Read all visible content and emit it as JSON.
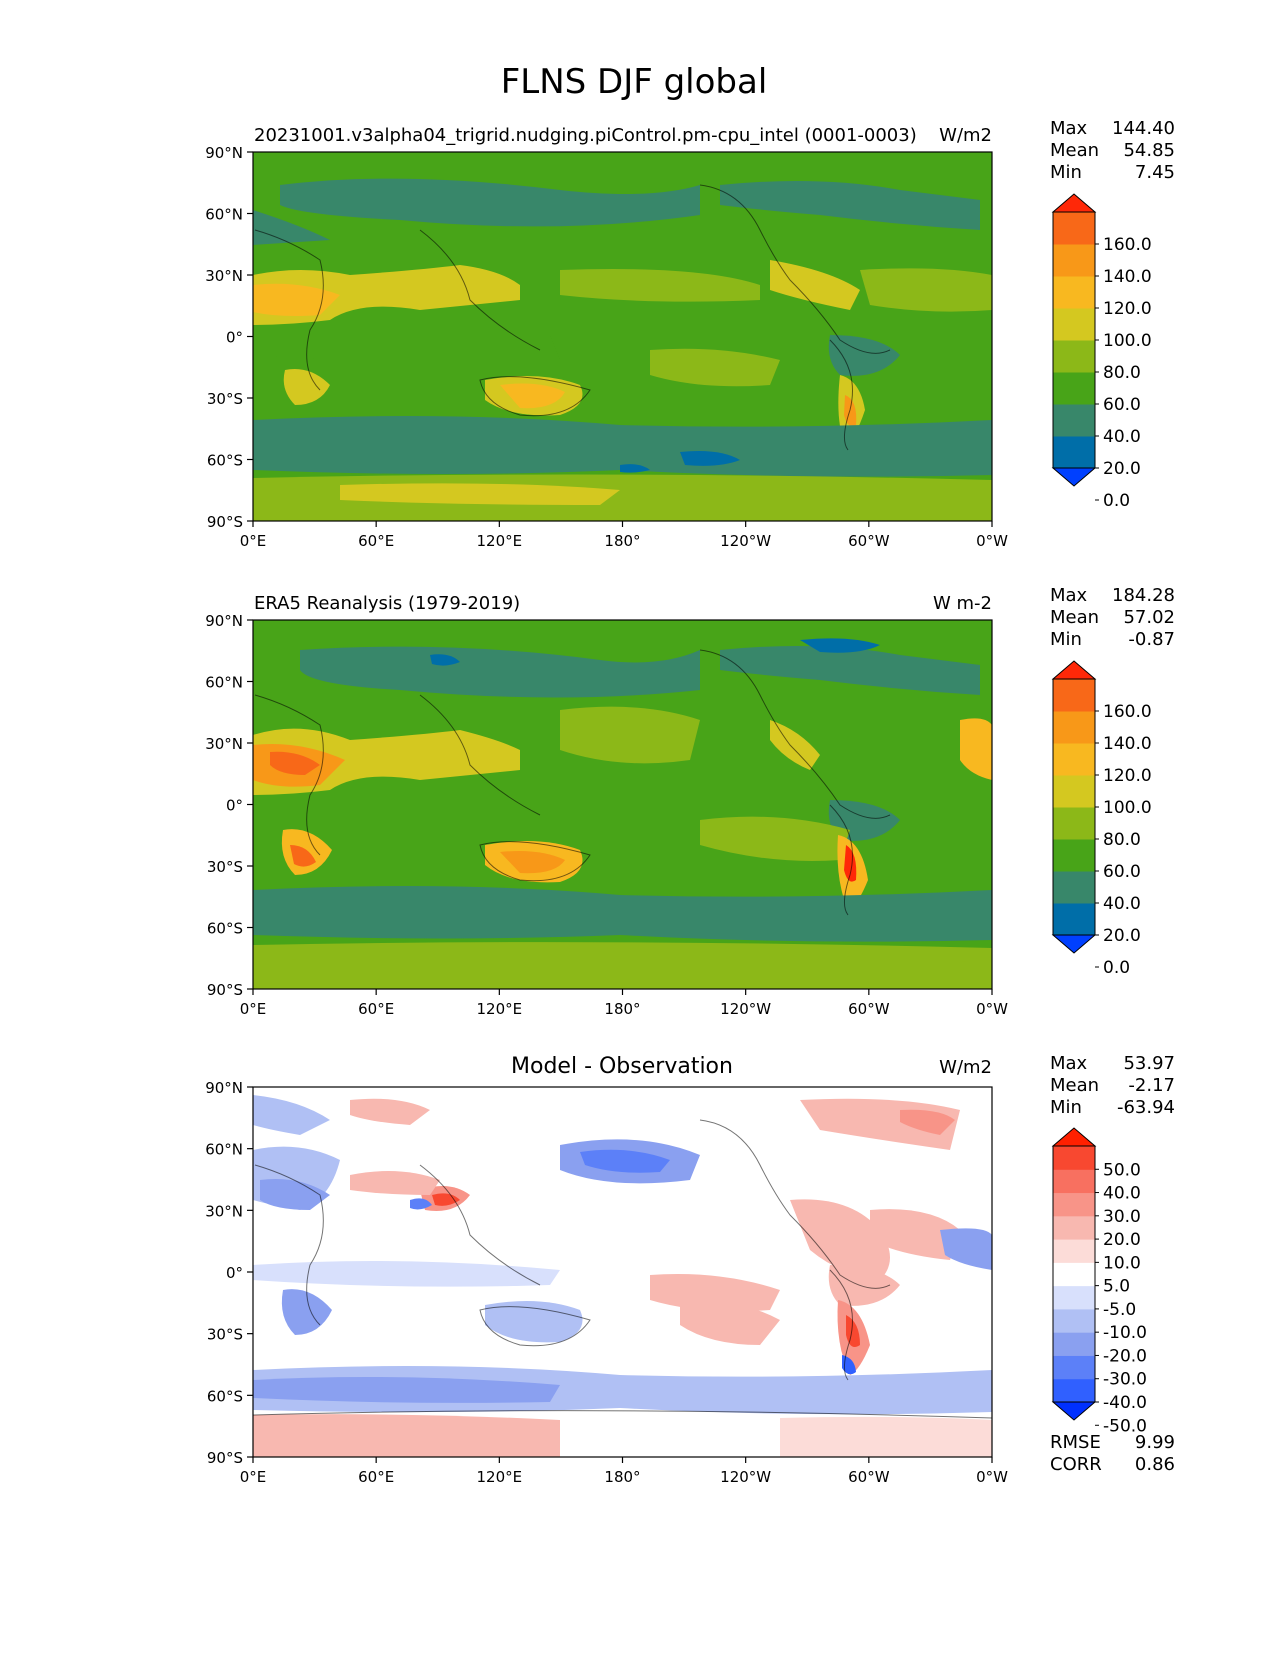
{
  "figure_title": "FLNS DJF global",
  "panels": [
    {
      "title_left": "20231001.v3alpha04_trigrid.nudging.piControl.pm-cpu_intel (0001-0003)",
      "title_center": "",
      "units": "W/m2",
      "stats": [
        {
          "label": "Max",
          "value": "144.40"
        },
        {
          "label": "Mean",
          "value": "54.85"
        },
        {
          "label": "Min",
          "value": "7.45"
        }
      ],
      "colorbar_labels": [
        "160.0",
        "140.0",
        "120.0",
        "100.0",
        "80.0",
        "60.0",
        "40.0",
        "20.0",
        "0.0"
      ],
      "colorbar_colors": [
        "#0040ff",
        "#006ea8",
        "#38876a",
        "#48a418",
        "#8cb818",
        "#d4c820",
        "#f8b820",
        "#f89818",
        "#f86818",
        "#ff2808"
      ]
    },
    {
      "title_left": "ERA5 Reanalysis (1979-2019)",
      "title_center": "",
      "units": "W m-2",
      "stats": [
        {
          "label": "Max",
          "value": "184.28"
        },
        {
          "label": "Mean",
          "value": "57.02"
        },
        {
          "label": "Min",
          "value": "-0.87"
        }
      ],
      "colorbar_labels": [
        "160.0",
        "140.0",
        "120.0",
        "100.0",
        "80.0",
        "60.0",
        "40.0",
        "20.0",
        "0.0"
      ],
      "colorbar_colors": [
        "#0040ff",
        "#006ea8",
        "#38876a",
        "#48a418",
        "#8cb818",
        "#d4c820",
        "#f8b820",
        "#f89818",
        "#f86818",
        "#ff2808"
      ]
    },
    {
      "title_left": "",
      "title_center": "Model - Observation",
      "units": "W/m2",
      "stats": [
        {
          "label": "Max",
          "value": "53.97"
        },
        {
          "label": "Mean",
          "value": "-2.17"
        },
        {
          "label": "Min",
          "value": "-63.94"
        }
      ],
      "colorbar_labels": [
        "50.0",
        "40.0",
        "30.0",
        "20.0",
        "10.0",
        "5.0",
        "-5.0",
        "-10.0",
        "-20.0",
        "-30.0",
        "-40.0",
        "-50.0"
      ],
      "colorbar_colors": [
        "#0030ff",
        "#3060ff",
        "#5c80f8",
        "#8aa0f0",
        "#b0c0f4",
        "#d8e0fc",
        "#ffffff",
        "#fcdcd8",
        "#f8b8b0",
        "#f89488",
        "#f87060",
        "#f84830",
        "#ff2000"
      ],
      "extra_stats": [
        {
          "label": "RMSE",
          "value": "9.99"
        },
        {
          "label": "CORR",
          "value": "0.86"
        }
      ]
    }
  ],
  "lat_ticks": [
    "90°N",
    "60°N",
    "30°N",
    "0°",
    "30°S",
    "60°S",
    "90°S"
  ],
  "lon_ticks": [
    "0°E",
    "60°E",
    "120°E",
    "180°",
    "120°W",
    "60°W",
    "0°W"
  ],
  "chart_data": [
    {
      "type": "heatmap",
      "title": "20231001.v3alpha04_trigrid.nudging.piControl.pm-cpu_intel (0001-0003)",
      "units": "W/m2",
      "xlim": [
        0,
        360
      ],
      "ylim": [
        -90,
        90
      ],
      "levels": [
        0,
        20,
        40,
        60,
        80,
        100,
        120,
        140,
        160
      ],
      "max": 144.4,
      "mean": 54.85,
      "min": 7.45,
      "zonal_band_values": {
        "lat": [
          80,
          60,
          40,
          20,
          0,
          -20,
          -40,
          -60,
          -80
        ],
        "value": [
          60,
          45,
          65,
          75,
          55,
          60,
          55,
          35,
          70
        ]
      }
    },
    {
      "type": "heatmap",
      "title": "ERA5 Reanalysis (1979-2019)",
      "units": "W m-2",
      "xlim": [
        0,
        360
      ],
      "ylim": [
        -90,
        90
      ],
      "levels": [
        0,
        20,
        40,
        60,
        80,
        100,
        120,
        140,
        160
      ],
      "max": 184.28,
      "mean": 57.02,
      "min": -0.87,
      "zonal_band_values": {
        "lat": [
          80,
          60,
          40,
          20,
          0,
          -20,
          -40,
          -60,
          -80
        ],
        "value": [
          55,
          40,
          60,
          75,
          55,
          60,
          55,
          40,
          70
        ]
      }
    },
    {
      "type": "heatmap",
      "title": "Model - Observation",
      "units": "W/m2",
      "xlim": [
        0,
        360
      ],
      "ylim": [
        -90,
        90
      ],
      "levels": [
        -50,
        -40,
        -30,
        -20,
        -10,
        -5,
        5,
        10,
        20,
        30,
        40,
        50
      ],
      "max": 53.97,
      "mean": -2.17,
      "min": -63.94,
      "rmse": 9.99,
      "corr": 0.86,
      "zonal_band_values": {
        "lat": [
          80,
          60,
          40,
          20,
          0,
          -20,
          -40,
          -60,
          -80
        ],
        "value": [
          0,
          -5,
          -8,
          -3,
          0,
          0,
          -5,
          -12,
          8
        ]
      }
    }
  ]
}
